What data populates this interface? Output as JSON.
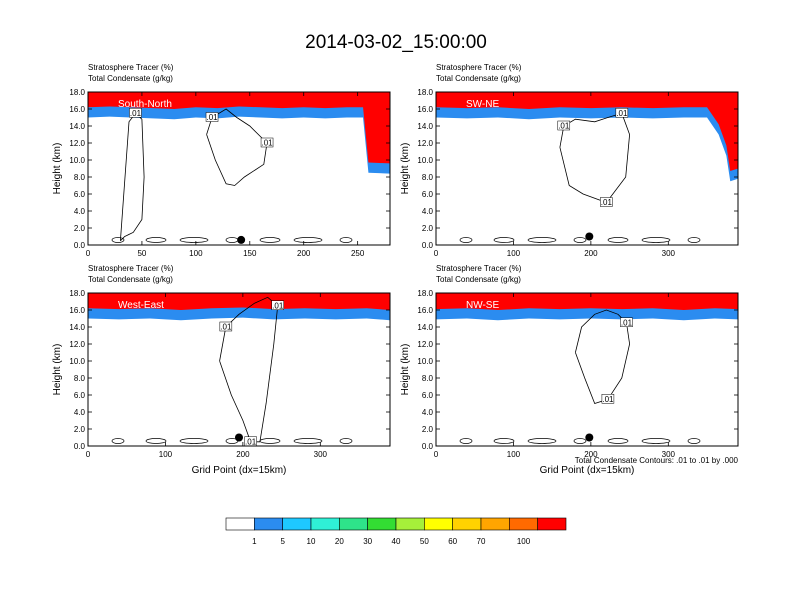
{
  "title": "2014-03-02_15:00:00",
  "footnote": "Total Condensate Contours: .01 to .01 by .000",
  "colorbar": {
    "labels": [
      "1",
      "5",
      "10",
      "20",
      "30",
      "40",
      "50",
      "60",
      "70",
      "100"
    ],
    "colors": [
      "#ffffff",
      "#2b8cf0",
      "#1ec8ff",
      "#2ff0d6",
      "#2ee38a",
      "#33dd33",
      "#a6f03a",
      "#ffff00",
      "#ffd200",
      "#ffa500",
      "#ff6a00",
      "#ff0000"
    ]
  },
  "chart_data": [
    {
      "type": "heatmap",
      "panel_label": "South-North",
      "title_lines": [
        "Stratosphere Tracer   (%)",
        "Total Condensate   (g/kg)"
      ],
      "xlabel": "",
      "ylabel": "Height (km)",
      "xlim": [
        0,
        280
      ],
      "ylim": [
        0,
        18
      ],
      "xticks": [
        0,
        50,
        100,
        150,
        200,
        250
      ],
      "yticks": [
        "0.0",
        "2.0",
        "4.0",
        "6.0",
        "8.0",
        "10.0",
        "12.0",
        "14.0",
        "16.0",
        "18.0"
      ],
      "contour_labels": [
        ".01",
        ".01",
        ".01"
      ],
      "marker": {
        "x": 142,
        "y": 0.6
      },
      "tracer_boundary": {
        "x": [
          0,
          20,
          40,
          60,
          80,
          100,
          120,
          140,
          160,
          180,
          200,
          220,
          240,
          255,
          260,
          280
        ],
        "y": [
          15.0,
          15.1,
          15.0,
          14.9,
          14.8,
          15.0,
          14.9,
          15.1,
          15.0,
          14.9,
          15.0,
          14.9,
          15.0,
          15.0,
          8.5,
          8.4
        ]
      },
      "condensate_contours": [
        {
          "x": [
            30,
            38,
            44,
            50,
            52,
            50,
            42,
            34,
            30
          ],
          "y": [
            0.5,
            14.5,
            15.5,
            14.8,
            8.0,
            3.0,
            1.5,
            1.0,
            0.5
          ]
        },
        {
          "x": [
            110,
            118,
            128,
            136,
            145,
            163,
            166,
            150,
            138,
            128,
            115,
            110
          ],
          "y": [
            13.0,
            10.0,
            7.2,
            7.0,
            8.0,
            9.5,
            12.0,
            14.0,
            15.0,
            16.0,
            15.0,
            13.0
          ]
        }
      ]
    },
    {
      "type": "heatmap",
      "panel_label": "SW-NE",
      "title_lines": [
        "Stratosphere Tracer   (%)",
        "Total Condensate   (g/kg)"
      ],
      "xlabel": "",
      "ylabel": "Height (km)",
      "xlim": [
        0,
        390
      ],
      "ylim": [
        0,
        18
      ],
      "xticks": [
        0,
        100,
        200,
        300
      ],
      "yticks": [
        "0.0",
        "2.0",
        "4.0",
        "6.0",
        "8.0",
        "10.0",
        "12.0",
        "14.0",
        "16.0",
        "18.0"
      ],
      "contour_labels": [
        ".01",
        ".01",
        ".01"
      ],
      "marker": {
        "x": 198,
        "y": 1.0
      },
      "tracer_boundary": {
        "x": [
          0,
          40,
          80,
          120,
          160,
          200,
          240,
          280,
          320,
          350,
          365,
          375,
          380,
          390
        ],
        "y": [
          15.0,
          14.9,
          15.0,
          14.8,
          15.0,
          14.9,
          15.0,
          14.9,
          15.0,
          15.0,
          13.0,
          10.5,
          7.5,
          7.8
        ]
      },
      "condensate_contours": [
        {
          "x": [
            160,
            172,
            190,
            220,
            245,
            250,
            240,
            222,
            205,
            180,
            165,
            160
          ],
          "y": [
            11.5,
            7.0,
            6.0,
            5.0,
            8.0,
            13.0,
            15.5,
            15.0,
            14.5,
            14.8,
            14.0,
            11.5
          ]
        }
      ]
    },
    {
      "type": "heatmap",
      "panel_label": "West-East",
      "title_lines": [
        "Stratosphere Tracer   (%)",
        "Total Condensate   (g/kg)"
      ],
      "xlabel": "Grid Point (dx=15km)",
      "ylabel": "Height (km)",
      "xlim": [
        0,
        390
      ],
      "ylim": [
        0,
        18
      ],
      "xticks": [
        0,
        100,
        200,
        300
      ],
      "yticks": [
        "0.0",
        "2.0",
        "4.0",
        "6.0",
        "8.0",
        "10.0",
        "12.0",
        "14.0",
        "16.0",
        "18.0"
      ],
      "contour_labels": [
        ".01",
        ".01",
        ".01"
      ],
      "marker": {
        "x": 195,
        "y": 1.0
      },
      "tracer_boundary": {
        "x": [
          0,
          40,
          80,
          120,
          160,
          200,
          240,
          280,
          320,
          360,
          390
        ],
        "y": [
          15.0,
          14.9,
          15.0,
          14.8,
          15.0,
          15.1,
          14.9,
          15.0,
          14.9,
          15.0,
          14.8
        ]
      },
      "condensate_contours": [
        {
          "x": [
            170,
            185,
            200,
            210,
            222,
            230,
            240,
            245,
            232,
            215,
            195,
            178,
            170
          ],
          "y": [
            10.0,
            6.0,
            3.0,
            0.5,
            0.5,
            5.0,
            12.0,
            16.5,
            17.5,
            16.8,
            15.5,
            14.0,
            10.0
          ]
        }
      ]
    },
    {
      "type": "heatmap",
      "panel_label": "NW-SE",
      "title_lines": [
        "Stratosphere Tracer   (%)",
        "Total Condensate   (g/kg)"
      ],
      "xlabel": "Grid Point (dx=15km)",
      "ylabel": "",
      "xlim": [
        0,
        390
      ],
      "ylim": [
        0,
        18
      ],
      "xticks": [
        0,
        100,
        200,
        300
      ],
      "yticks": [
        "0.0",
        "2.0",
        "4.0",
        "6.0",
        "8.0",
        "10.0",
        "12.0",
        "14.0",
        "16.0",
        "18.0"
      ],
      "contour_labels": [
        ".01",
        ".01"
      ],
      "marker": {
        "x": 198,
        "y": 1.0
      },
      "tracer_boundary": {
        "x": [
          0,
          40,
          80,
          120,
          160,
          200,
          240,
          280,
          320,
          360,
          390
        ],
        "y": [
          14.9,
          15.0,
          14.8,
          15.0,
          14.9,
          15.0,
          14.9,
          15.0,
          14.8,
          15.0,
          14.9
        ]
      },
      "condensate_contours": [
        {
          "x": [
            180,
            192,
            205,
            222,
            240,
            250,
            246,
            235,
            220,
            205,
            188,
            180
          ],
          "y": [
            11.0,
            8.0,
            5.0,
            5.5,
            8.0,
            12.0,
            14.5,
            15.5,
            16.0,
            15.5,
            14.0,
            11.0
          ]
        }
      ]
    }
  ]
}
